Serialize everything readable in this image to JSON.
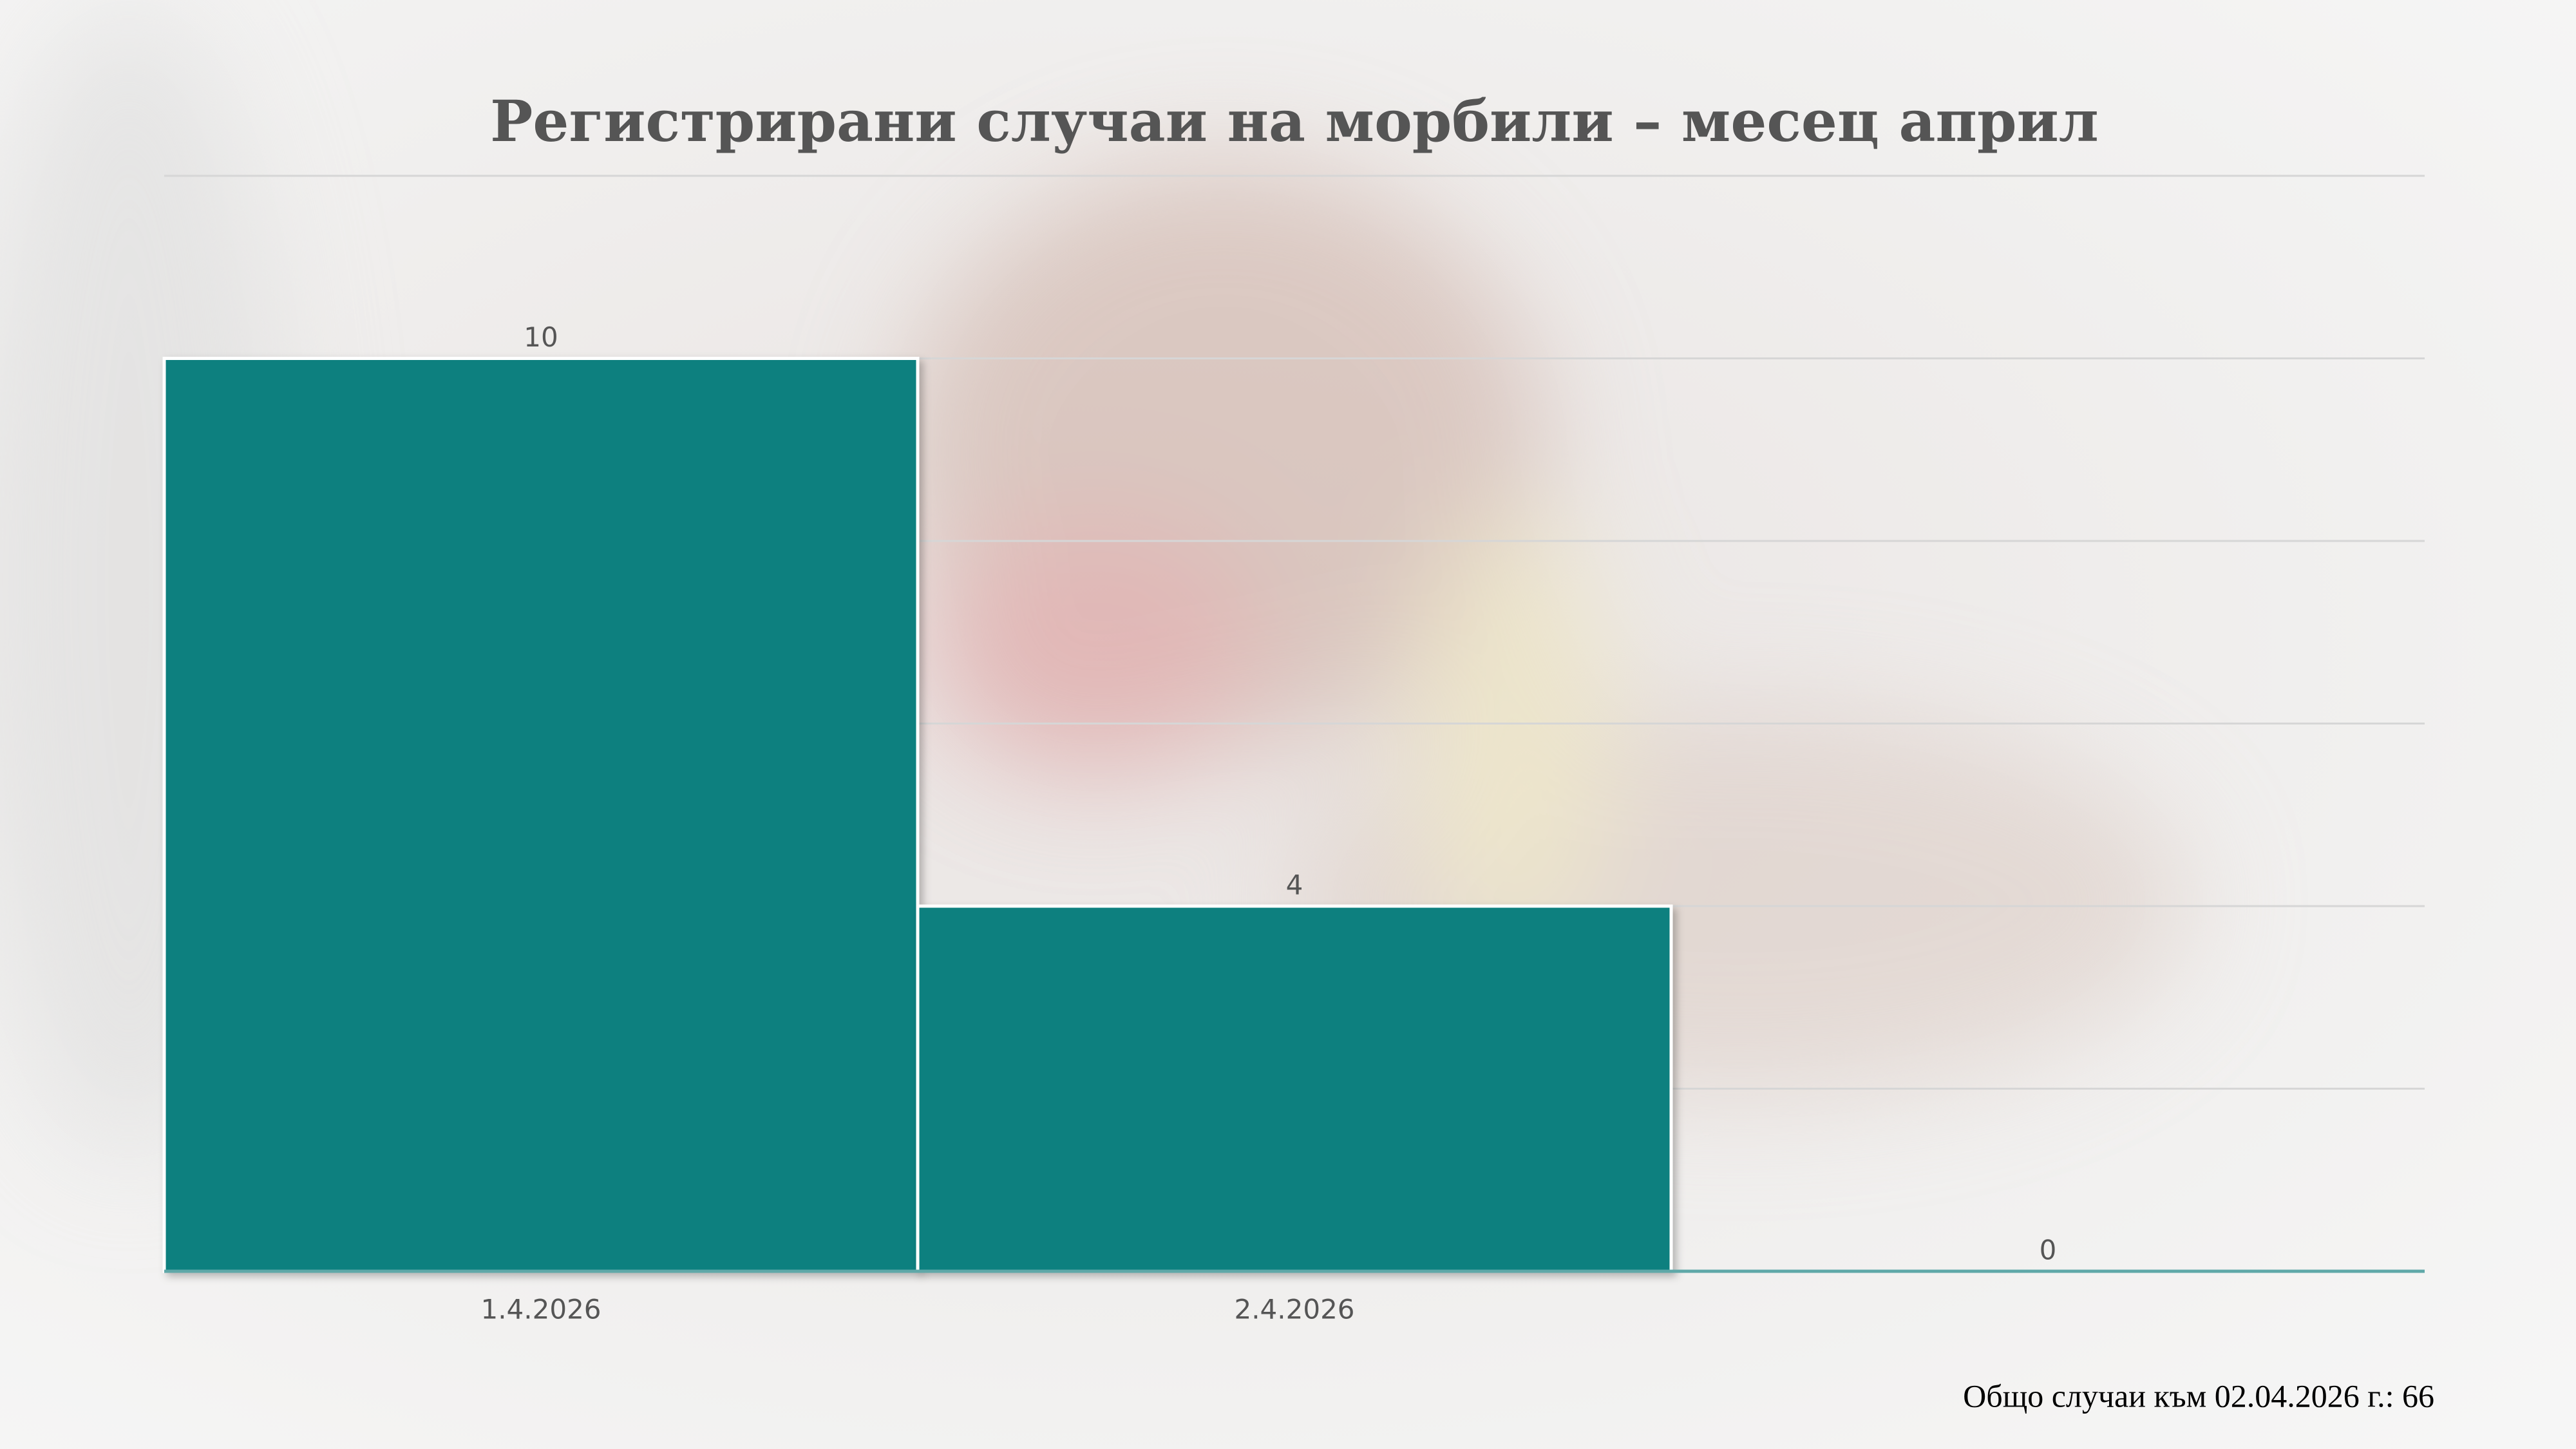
{
  "chart_data": {
    "type": "bar",
    "title": "Регистрирани случаи на морбили – месец април",
    "categories": [
      "1.4.2026",
      "2.4.2026",
      null
    ],
    "values": [
      10,
      4,
      0
    ],
    "color": "#10807f",
    "ylim": [
      0,
      12
    ],
    "yticks": [
      0,
      2,
      4,
      6,
      8,
      10,
      12
    ],
    "grid": true,
    "footnote": "Общо случаи към 02.04.2026 г.: 66"
  }
}
